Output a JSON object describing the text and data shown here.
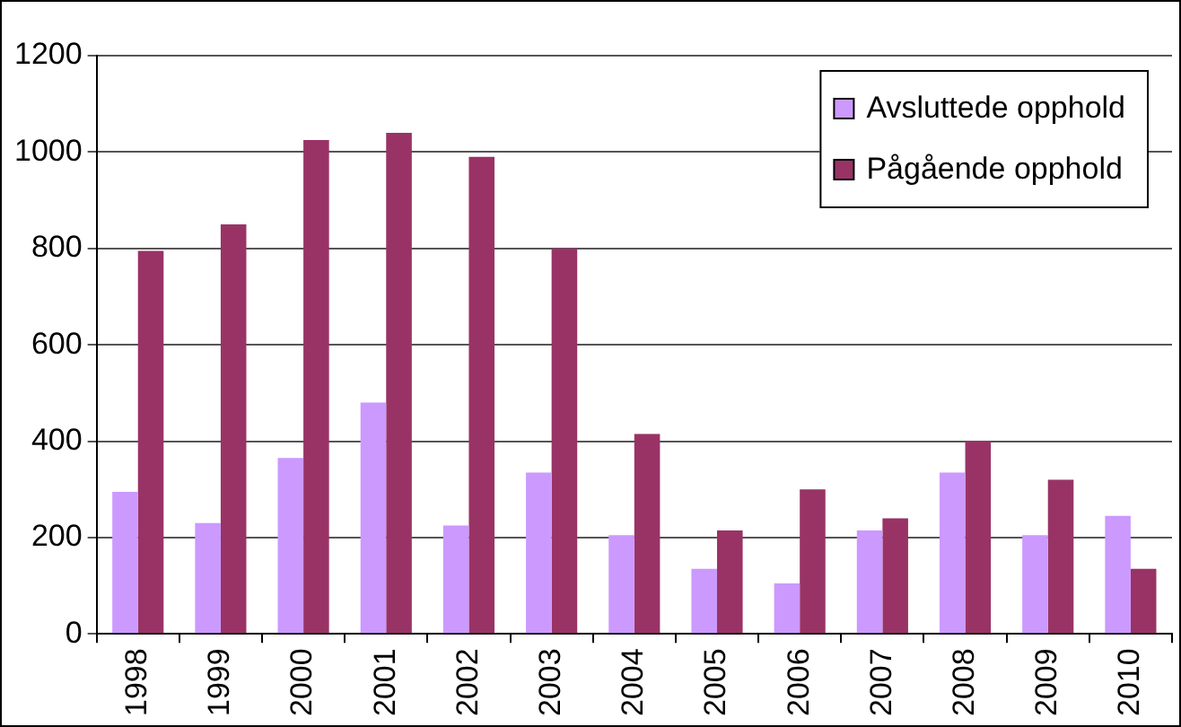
{
  "chart_data": {
    "type": "bar",
    "categories": [
      "1998",
      "1999",
      "2000",
      "2001",
      "2002",
      "2003",
      "2004",
      "2005",
      "2006",
      "2007",
      "2008",
      "2009",
      "2010"
    ],
    "series": [
      {
        "name": "Avsluttede opphold",
        "color": "#cc99ff",
        "values": [
          295,
          230,
          365,
          480,
          225,
          335,
          205,
          135,
          105,
          215,
          335,
          205,
          245
        ]
      },
      {
        "name": "Pågående opphold",
        "color": "#993366",
        "values": [
          795,
          850,
          1025,
          1040,
          990,
          800,
          415,
          215,
          300,
          240,
          400,
          320,
          135
        ]
      }
    ],
    "ylim": [
      0,
      1200
    ],
    "yticks": [
      0,
      200,
      400,
      600,
      800,
      1000,
      1200
    ],
    "grid": "y",
    "legend": "top right"
  }
}
